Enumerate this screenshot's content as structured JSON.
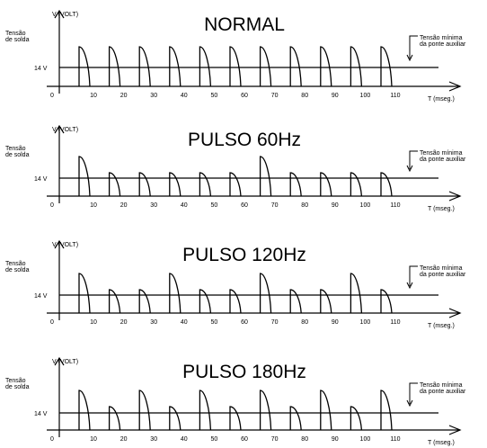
{
  "labels": {
    "y_axis": "V (VOLT)",
    "y_side_line1": "Tensão",
    "y_side_line2": "de solda",
    "level": "14 V",
    "x_axis": "T (mseg.)",
    "origin": "0",
    "note_line1": "Tensão mínima",
    "note_line2": "da ponte auxiliar"
  },
  "ticks": [
    "10",
    "20",
    "30",
    "40",
    "50",
    "60",
    "70",
    "80",
    "90",
    "100",
    "110"
  ],
  "panels": [
    {
      "title": "NORMAL",
      "pulses": [
        "high",
        "high",
        "high",
        "high",
        "high",
        "high",
        "high",
        "high",
        "high",
        "high",
        "high"
      ]
    },
    {
      "title": "PULSO 60Hz",
      "pulses": [
        "high",
        "low",
        "low",
        "low",
        "low",
        "low",
        "high",
        "low",
        "low",
        "low",
        "low"
      ]
    },
    {
      "title": "PULSO 120Hz",
      "pulses": [
        "high",
        "low",
        "low",
        "high",
        "low",
        "low",
        "high",
        "low",
        "low",
        "high",
        "low"
      ]
    },
    {
      "title": "PULSO 180Hz",
      "pulses": [
        "high",
        "low",
        "high",
        "low",
        "high",
        "low",
        "high",
        "low",
        "high",
        "low",
        "high"
      ]
    }
  ],
  "colors": {
    "line": "#000000",
    "background": "#ffffff"
  }
}
